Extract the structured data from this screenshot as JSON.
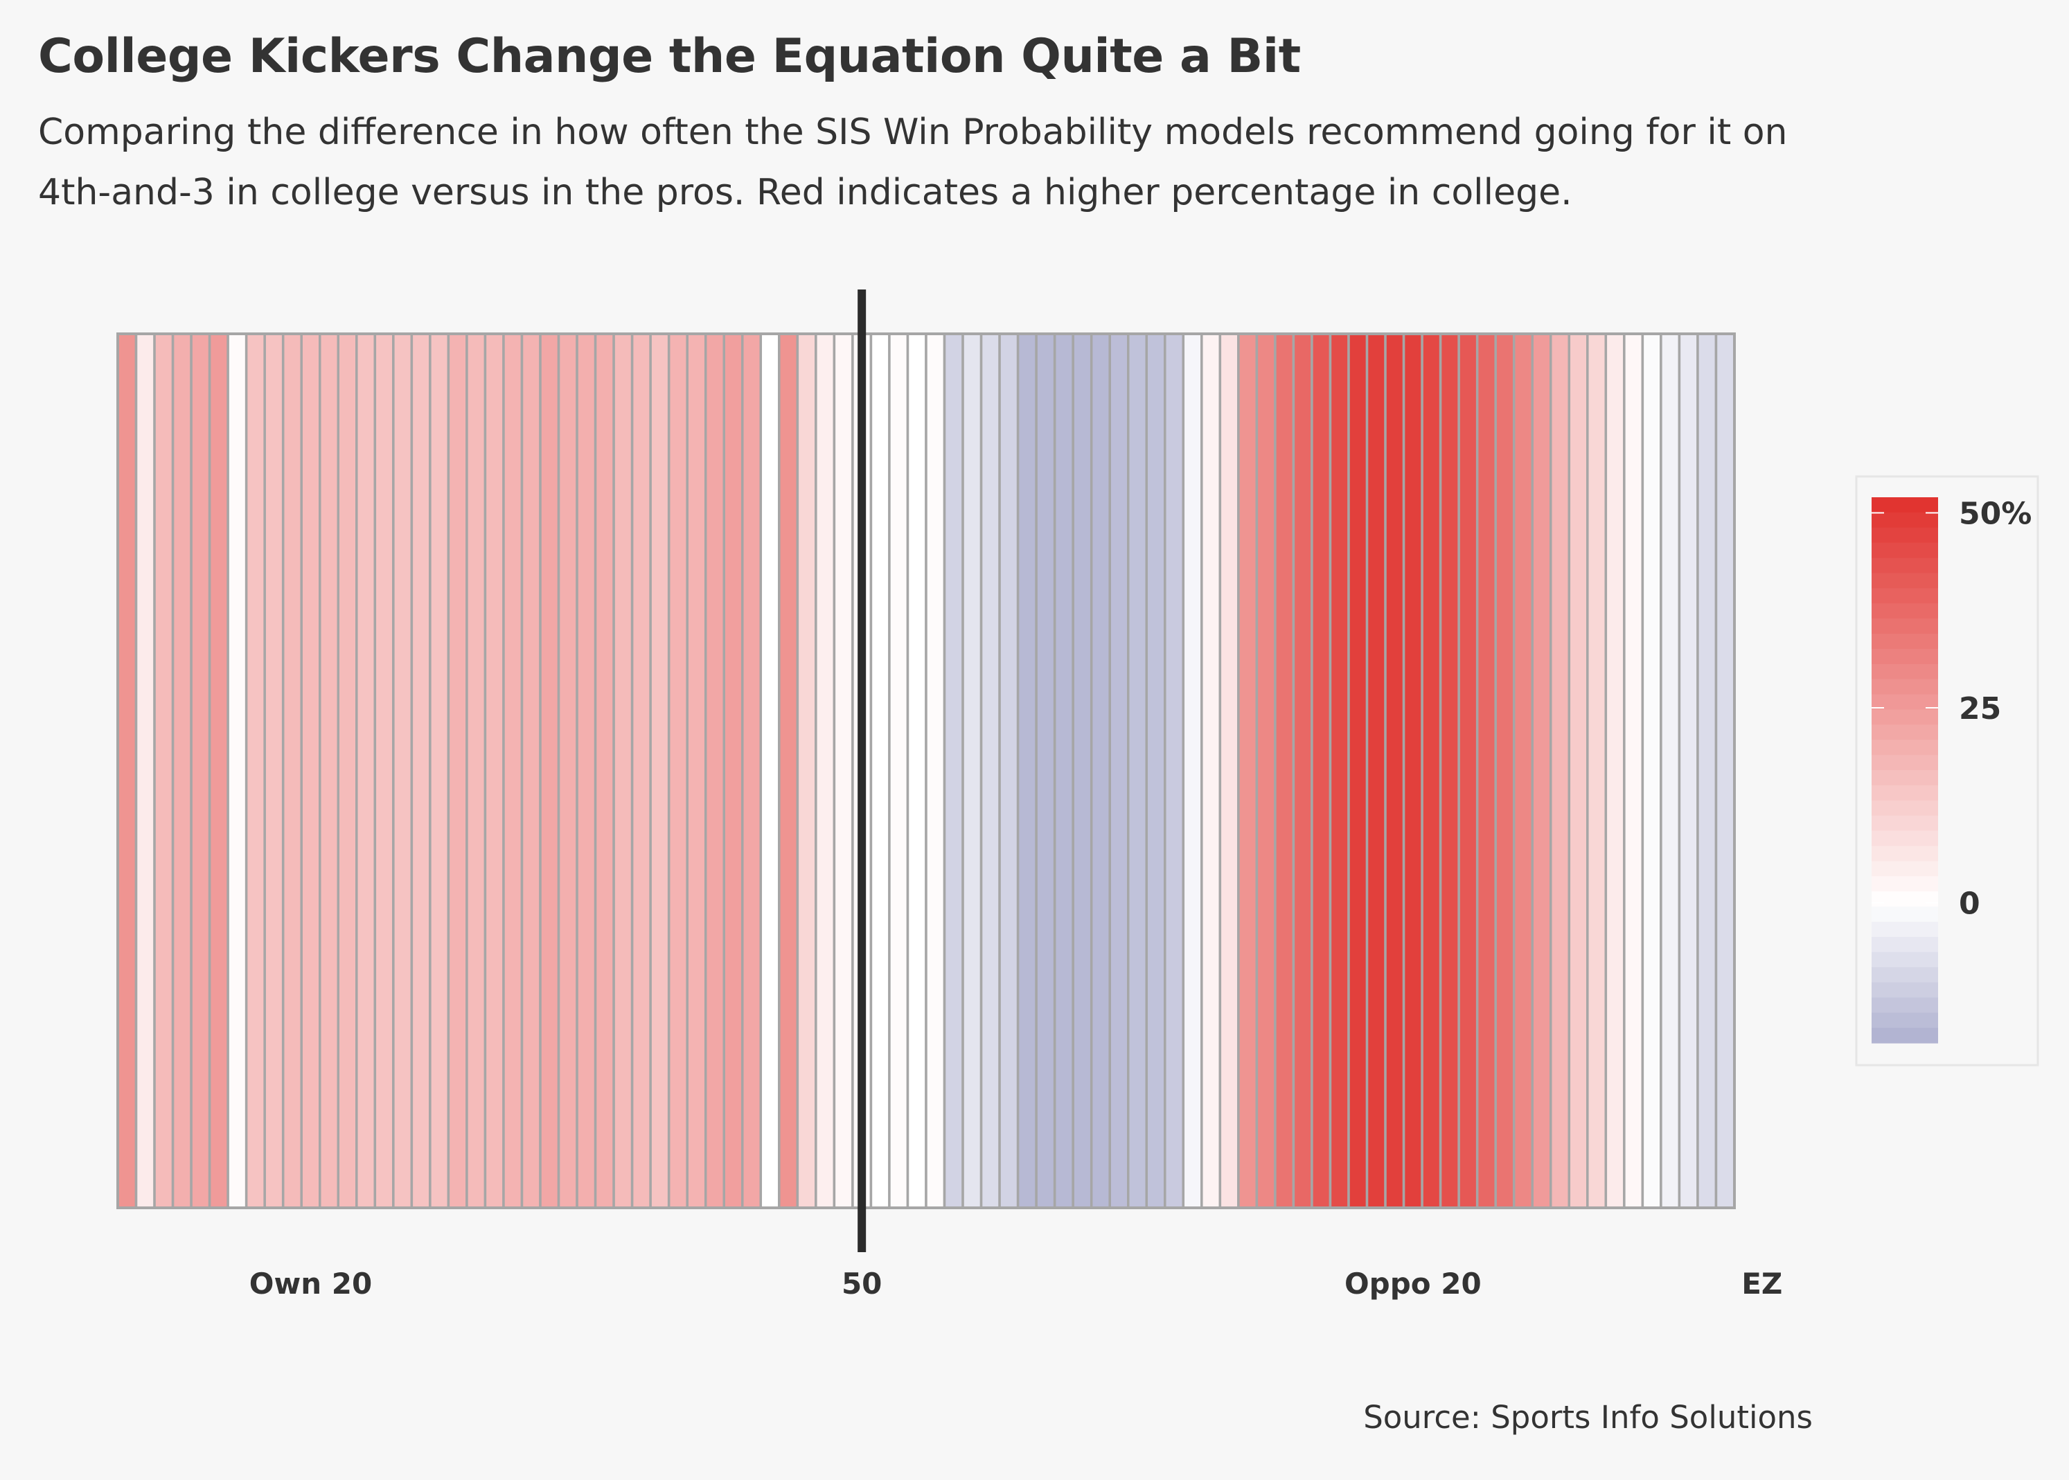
{
  "title": "College Kickers Change the Equation Quite a Bit",
  "subtitle": "Comparing the difference in how often the SIS Win Probability models recommend going for it on 4th-and-3 in college versus in the pros. Red indicates a higher percentage in college.",
  "source": "Source: Sports Info Solutions",
  "colors": {
    "high": "#e0302c",
    "zero": "#ffffff",
    "low": "#aeb0cf",
    "border": "#a6a6a6",
    "midline": "#2b2b2b"
  },
  "chart_data": {
    "type": "heatmap",
    "x_ticks": [
      {
        "position": 20,
        "label": "Own 20"
      },
      {
        "position": 50,
        "label": "50"
      },
      {
        "position": 80,
        "label": "Oppo 20"
      },
      {
        "position": 99,
        "label": "EZ"
      }
    ],
    "midline_position": 50,
    "x_range": [
      10,
      97
    ],
    "yard_lines": [
      10,
      11,
      12,
      13,
      14,
      15,
      16,
      17,
      18,
      19,
      20,
      21,
      22,
      23,
      24,
      25,
      26,
      27,
      28,
      29,
      30,
      31,
      32,
      33,
      34,
      35,
      36,
      37,
      38,
      39,
      40,
      41,
      42,
      43,
      44,
      45,
      46,
      47,
      48,
      49,
      50,
      51,
      52,
      53,
      54,
      55,
      56,
      57,
      58,
      59,
      60,
      61,
      62,
      63,
      64,
      65,
      66,
      67,
      68,
      69,
      70,
      71,
      72,
      73,
      74,
      75,
      76,
      77,
      78,
      79,
      80,
      81,
      82,
      83,
      84,
      85,
      86,
      87,
      88,
      89,
      90,
      91,
      92,
      93,
      94,
      95,
      96,
      97
    ],
    "values": [
      27,
      5,
      17,
      20,
      22,
      25,
      1,
      15,
      15,
      17,
      17,
      17,
      17,
      15,
      15,
      15,
      15,
      15,
      19,
      17,
      17,
      19,
      19,
      22,
      20,
      20,
      20,
      17,
      17,
      15,
      19,
      19,
      22,
      24,
      22,
      0,
      27,
      10,
      4,
      2,
      1,
      0,
      1,
      0,
      1,
      -10,
      -6,
      -8,
      -10,
      -16,
      -16,
      -16,
      -16,
      -16,
      -15,
      -14,
      -14,
      -12,
      -2,
      3,
      7,
      27,
      30,
      35,
      38,
      42,
      45,
      48,
      48,
      48,
      48,
      46,
      44,
      42,
      38,
      35,
      30,
      25,
      18,
      13,
      10,
      5,
      2,
      -1,
      -3,
      -5,
      -8,
      -8
    ],
    "color_scale": {
      "min": -18,
      "max": 52,
      "mid": 0
    },
    "legend": {
      "position": "right",
      "ticks": [
        {
          "value": 50,
          "label": "50%"
        },
        {
          "value": 25,
          "label": "25"
        },
        {
          "value": 0,
          "label": "0"
        }
      ]
    }
  }
}
